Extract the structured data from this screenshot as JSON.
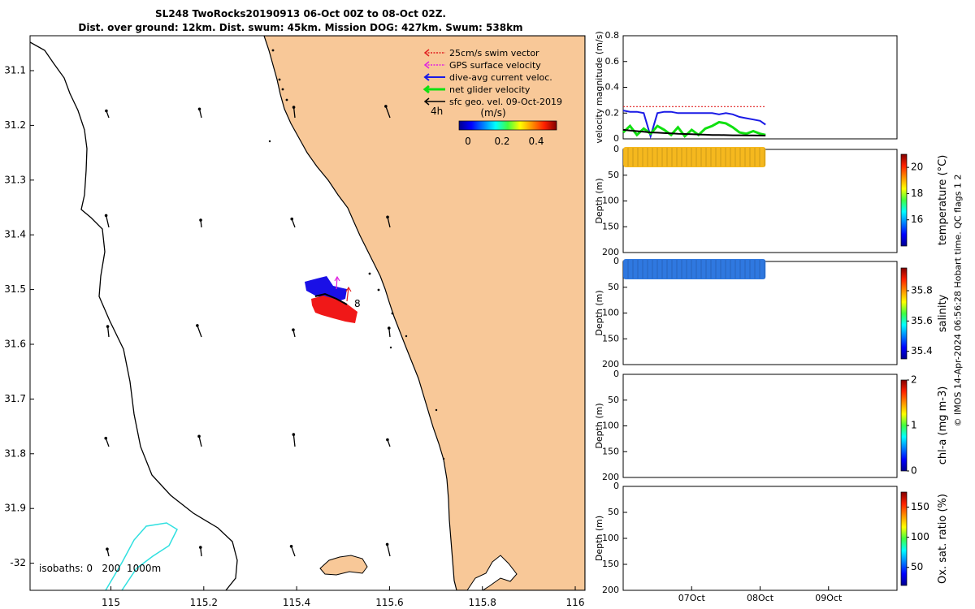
{
  "header": {
    "title_line1": "SL248 TwoRocks20190913 06-Oct 00Z to 08-Oct 02Z.",
    "title_line2": "Dist. over ground: 12km. Dist. swum: 45km. Mission DOG: 427km. Swum: 538km"
  },
  "credit": "© IMOS 14-Apr-2024 06:56:28 Hobart time. QC flags 1  2",
  "colors": {
    "land": "#f8c898",
    "isobath_200": "#30e0e0",
    "swim": "#e02020",
    "gps": "#e020e0",
    "dive_avg": "#1a1ae6",
    "net": "#10e010",
    "sfc_geo": "#000000",
    "track_red": "#f01818",
    "track_blue": "#1a10e6",
    "temperature_fill": "#f5b81e",
    "salinity_fill": "#2f78e0"
  },
  "map": {
    "x_ticks": [
      "115",
      "115.2",
      "115.4",
      "115.6",
      "115.8",
      "116"
    ],
    "y_ticks": [
      "31.1",
      "31.2",
      "31.3",
      "31.4",
      "31.5",
      "31.6",
      "31.7",
      "31.8",
      "31.9",
      "-32"
    ],
    "legend": [
      {
        "label": "25cm/s swim vector",
        "color": "#e02020"
      },
      {
        "label": "GPS surface velocity",
        "color": "#e020e0"
      },
      {
        "label": "dive-avg current veloc.",
        "color": "#1a1ae6"
      },
      {
        "label": "net glider velocity",
        "color": "#10e010"
      },
      {
        "label": "sfc geo. vel. 09-Oct-2019",
        "color": "#000000"
      }
    ],
    "colorbar": {
      "ticks": [
        "0",
        "0.2",
        "0.4"
      ],
      "units": "(m/s)"
    },
    "time_label": "4h",
    "track_label": "8",
    "isobaths_label": "isobaths: 0   200  1000m"
  },
  "chart_data": [
    {
      "type": "line",
      "title": "",
      "xlabel": "",
      "ylabel": "velocity magnitude (m/s)",
      "ylim": [
        0,
        0.8
      ],
      "yticks": [
        "0",
        "0.2",
        "0.4",
        "0.6",
        "0.8"
      ],
      "x": [
        6.0,
        6.1,
        6.2,
        6.3,
        6.4,
        6.5,
        6.6,
        6.7,
        6.8,
        6.9,
        7.0,
        7.1,
        7.2,
        7.3,
        7.4,
        7.5,
        7.6,
        7.7,
        7.8,
        7.9,
        8.0,
        8.08
      ],
      "series": [
        {
          "name": "25cm/s swim vector",
          "values": [
            0.25,
            0.25,
            0.25,
            0.25,
            0.25,
            0.25,
            0.25,
            0.25,
            0.25,
            0.25,
            0.25,
            0.25,
            0.25,
            0.25,
            0.25,
            0.25,
            0.25,
            0.25,
            0.25,
            0.25,
            0.25,
            0.25
          ]
        },
        {
          "name": "dive-avg current veloc.",
          "values": [
            0.22,
            0.21,
            0.21,
            0.2,
            0.02,
            0.2,
            0.21,
            0.21,
            0.2,
            0.2,
            0.2,
            0.2,
            0.2,
            0.2,
            0.19,
            0.2,
            0.19,
            0.17,
            0.16,
            0.15,
            0.14,
            0.11
          ]
        },
        {
          "name": "net glider velocity",
          "values": [
            0.05,
            0.1,
            0.03,
            0.08,
            0.04,
            0.1,
            0.07,
            0.03,
            0.09,
            0.02,
            0.07,
            0.03,
            0.08,
            0.1,
            0.13,
            0.12,
            0.09,
            0.05,
            0.04,
            0.06,
            0.04,
            0.03
          ]
        },
        {
          "name": "sfc geo. vel.",
          "values": [
            0.07,
            0.065,
            0.06,
            0.055,
            0.05,
            0.048,
            0.045,
            0.043,
            0.04,
            0.038,
            0.036,
            0.034,
            0.032,
            0.03,
            0.03,
            0.029,
            0.028,
            0.028,
            0.027,
            0.027,
            0.026,
            0.025
          ]
        }
      ]
    },
    {
      "type": "heatmap",
      "ylabel": "Depth (m)",
      "ylim": [
        200,
        0
      ],
      "yticks": [
        "0",
        "50",
        "100",
        "150",
        "200"
      ],
      "x_range": [
        6.0,
        8.08
      ],
      "depth_range": [
        0,
        30
      ],
      "colorbar_label": "temperature (°C)",
      "colorbar_ticks": [
        "16",
        "18",
        "20"
      ],
      "colorbar_range": [
        14,
        21
      ],
      "value": 19.8
    },
    {
      "type": "heatmap",
      "ylabel": "Depth (m)",
      "ylim": [
        200,
        0
      ],
      "yticks": [
        "0",
        "50",
        "100",
        "150",
        "200"
      ],
      "x_range": [
        6.0,
        8.08
      ],
      "depth_range": [
        0,
        30
      ],
      "colorbar_label": "salinity",
      "colorbar_ticks": [
        "35.4",
        "35.6",
        "35.8"
      ],
      "colorbar_range": [
        35.35,
        35.95
      ],
      "value": 35.55
    },
    {
      "type": "heatmap",
      "ylabel": "Depth (m)",
      "ylim": [
        200,
        0
      ],
      "yticks": [
        "0",
        "50",
        "100",
        "150",
        "200"
      ],
      "colorbar_label": "chl-a (mg m-3)",
      "colorbar_ticks": [
        "0",
        "1",
        "2"
      ],
      "colorbar_range": [
        0,
        2
      ]
    },
    {
      "type": "heatmap",
      "ylabel": "Depth (m)",
      "ylim": [
        200,
        0
      ],
      "yticks": [
        "0",
        "50",
        "100",
        "150",
        "200"
      ],
      "xticks": [
        "07Oct",
        "08Oct",
        "09Oct"
      ],
      "colorbar_label": "Ox. sat. ratio (%)",
      "colorbar_ticks": [
        "50",
        "100",
        "150"
      ],
      "colorbar_range": [
        20,
        175
      ]
    }
  ]
}
